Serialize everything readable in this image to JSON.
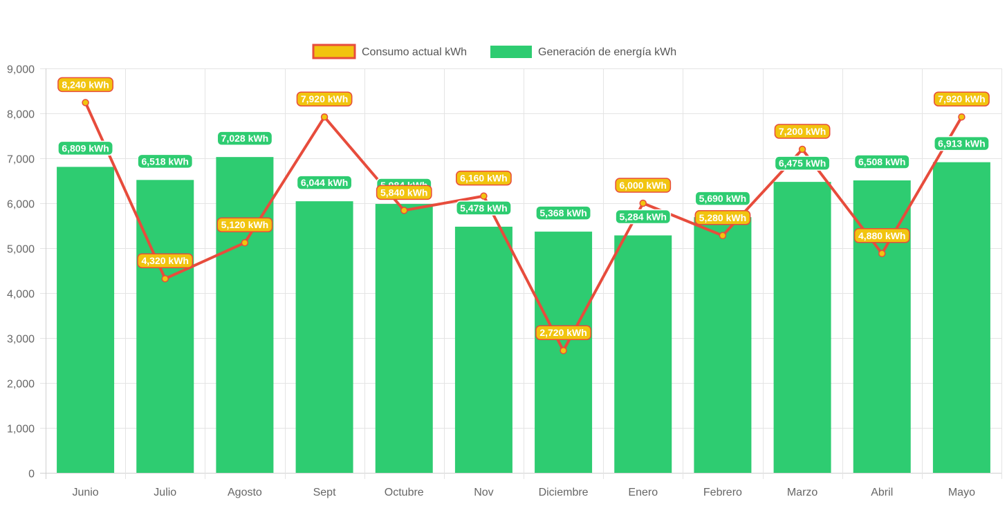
{
  "chart_data": {
    "type": "bar",
    "categories": [
      "Junio",
      "Julio",
      "Agosto",
      "Sept",
      "Octubre",
      "Nov",
      "Diciembre",
      "Enero",
      "Febrero",
      "Marzo",
      "Abril",
      "Mayo"
    ],
    "series": [
      {
        "name": "Consumo actual kWh",
        "kind": "line",
        "color": "#e74c3c",
        "point_color": "#f1c40f",
        "values": [
          8240,
          4320,
          5120,
          7920,
          5840,
          6160,
          2720,
          6000,
          5280,
          7200,
          4880,
          7920
        ],
        "labels": [
          "8,240 kWh",
          "4,320 kWh",
          "5,120 kWh",
          "7,920 kWh",
          "5,840 kWh",
          "6,160 kWh",
          "2,720 kWh",
          "6,000 kWh",
          "5,280 kWh",
          "7,200 kWh",
          "4,880 kWh",
          "7,920 kWh"
        ]
      },
      {
        "name": "Generación de energía kWh",
        "kind": "bar",
        "color": "#2ecc71",
        "values": [
          6809,
          6518,
          7028,
          6044,
          5984,
          5478,
          5368,
          5284,
          5690,
          6475,
          6508,
          6913
        ],
        "labels": [
          "6,809 kWh",
          "6,518 kWh",
          "7,028 kWh",
          "6,044 kWh",
          "5,984 kWh",
          "5,478 kWh",
          "5,368 kWh",
          "5,284 kWh",
          "5,690 kWh",
          "6,475 kWh",
          "6,508 kWh",
          "6,913 kWh"
        ]
      }
    ],
    "ylim": [
      0,
      9000
    ],
    "yticks": [
      "0",
      "1,000",
      "2,000",
      "3,000",
      "4,000",
      "5,000",
      "6,000",
      "7,000",
      "8,000",
      "9,000"
    ],
    "grid": true,
    "legend": "top-center",
    "title": "",
    "xlabel": "",
    "ylabel": ""
  }
}
